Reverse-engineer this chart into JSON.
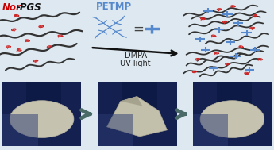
{
  "top_bg": "#dde8f0",
  "bottom_bg": "#1a2255",
  "nor_label_color": "#cc0000",
  "pgs_label_color": "#111111",
  "petmp_color": "#5588cc",
  "crosslinker_color": "#5588cc",
  "polymer_chain_color": "#333333",
  "norbornene_color": "#cc2222",
  "arrow_color": "#111111",
  "arrow_gray": "#4a6a68",
  "dmpa_label": "DMPA",
  "uv_label": "UV light",
  "petmp_label": "PETMP",
  "nor_pgs_label": "Nor-PGS",
  "figsize": [
    3.45,
    1.89
  ],
  "dpi": 100
}
